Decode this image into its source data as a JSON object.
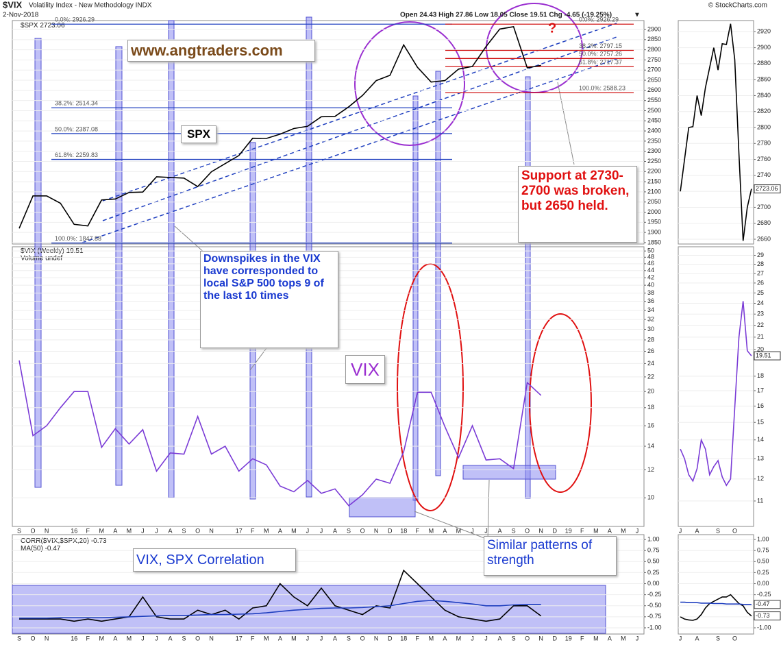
{
  "header": {
    "symbol": "$VIX",
    "title": "Volatility Index - New Methodology INDX",
    "date": "2-Nov-2018",
    "ohlc": "Open 24.43  High 27.86  Low 18.05  Close 19.51  Chg -4.65 (-19.25%)",
    "source": "© StockCharts.com",
    "volume": "Volume undef"
  },
  "annotations": {
    "site": "www.angtraders.com",
    "spx": "SPX",
    "downspikes": "Downspikes in the VIX have corresponded to local S&P 500 tops 9 of the last 10 times",
    "support": "Support at 2730-2700 was broken, but 2650 held.",
    "vix": "VIX",
    "corr": "VIX, SPX Correlation",
    "patterns": "Similar patterns of strength",
    "question": "?"
  },
  "chart_data": [
    {
      "type": "line",
      "name": "$SPX",
      "color": "#000000",
      "values": [
        1920,
        2080,
        2080,
        2044,
        1940,
        1932,
        2060,
        2065,
        2097,
        2099,
        2174,
        2171,
        2168,
        2126,
        2199,
        2239,
        2279,
        2364,
        2363,
        2384,
        2412,
        2423,
        2470,
        2472,
        2519,
        2575,
        2648,
        2674,
        2824,
        2714,
        2641,
        2648,
        2705,
        2718,
        2816,
        2902,
        2914,
        2711,
        2723.06,
        null,
        null,
        null,
        null,
        null,
        null,
        null
      ],
      "ylim": [
        1843,
        2944
      ],
      "yticks": [
        1850,
        1900,
        1950,
        2000,
        2050,
        2100,
        2150,
        2200,
        2250,
        2300,
        2350,
        2400,
        2450,
        2500,
        2550,
        2600,
        2650,
        2700,
        2750,
        2800,
        2850,
        2900
      ],
      "levels": [
        {
          "value": 2926.29,
          "label": "0.0%: 2926.29"
        },
        {
          "value": 2514.34,
          "label": "38.2%: 2514.34"
        },
        {
          "value": 2387.08,
          "label": "50.0%: 2387.08"
        },
        {
          "value": 2259.83,
          "label": "61.8%: 2259.83"
        },
        {
          "value": 1847.88,
          "label": "100.0%: 1847.88"
        }
      ],
      "levels2": [
        {
          "value": 2926.29,
          "label": "0.0%: 2926.29"
        },
        {
          "value": 2797.15,
          "label": "38.2%: 2797.15"
        },
        {
          "value": 2757.26,
          "label": "50.0%: 2757.26"
        },
        {
          "value": 2717.37,
          "label": "61.8%: 2717.37"
        },
        {
          "value": 2588.23,
          "label": "100.0%: 2588.23"
        }
      ],
      "levels_color": "#1f3fbf",
      "levels2_color": "#d01010"
    },
    {
      "type": "line",
      "name": "$VIX (Weekly)",
      "color": "#7a3bd6",
      "log_scale": true,
      "categories": [
        "S",
        "O",
        "N",
        null,
        "16",
        "F",
        "M",
        "A",
        "M",
        "J",
        "J",
        "A",
        "S",
        "O",
        "N",
        null,
        "17",
        "F",
        "M",
        "A",
        "M",
        "J",
        "J",
        "A",
        "S",
        "O",
        "N",
        "D",
        "18",
        "F",
        "M",
        "A",
        "M",
        "J",
        "J",
        "A",
        "S",
        "O",
        "N",
        "D",
        "19",
        "F",
        "M",
        "A",
        "M",
        "J"
      ],
      "values": [
        24.5,
        15,
        16,
        18,
        20,
        20,
        13.9,
        15.7,
        14.2,
        15.6,
        11.9,
        13.4,
        13.3,
        17,
        13.3,
        14,
        11.9,
        12.9,
        12.4,
        10.8,
        10.4,
        11.2,
        10.3,
        10.6,
        9.5,
        10.2,
        11.3,
        11,
        13.5,
        19.9,
        19.9,
        15.9,
        13,
        16,
        12.8,
        12.9,
        12.1,
        21.2,
        19.51,
        null,
        null,
        null,
        null,
        null,
        null,
        null
      ],
      "ylim": [
        8.3,
        51.4
      ],
      "yticks": [
        10,
        12,
        14,
        16,
        18,
        20,
        22,
        24,
        26,
        28,
        30,
        32,
        34,
        36,
        38,
        40,
        42,
        44,
        46,
        48,
        50
      ]
    },
    {
      "type": "line",
      "categories": [
        "S",
        "O",
        "N",
        null,
        "16",
        "F",
        "M",
        "A",
        "M",
        "J",
        "J",
        "A",
        "S",
        "O",
        "N",
        null,
        "17",
        "F",
        "M",
        "A",
        "M",
        "J",
        "J",
        "A",
        "S",
        "O",
        "N",
        "D",
        "18",
        "F",
        "M",
        "A",
        "M",
        "J",
        "J",
        "A",
        "S",
        "O",
        "N",
        "D",
        "19",
        "F",
        "M",
        "A",
        "M",
        "J"
      ],
      "series": [
        {
          "name": "CORR($VIX,$SPX,20)",
          "color": "#000000",
          "values": [
            -0.8,
            -0.8,
            -0.8,
            -0.8,
            -0.85,
            -0.8,
            -0.85,
            -0.8,
            -0.75,
            -0.3,
            -0.75,
            -0.8,
            -0.8,
            -0.6,
            -0.7,
            -0.6,
            -0.8,
            -0.55,
            -0.5,
            0,
            -0.3,
            -0.5,
            -0.1,
            -0.5,
            -0.6,
            -0.7,
            -0.5,
            -0.55,
            0.3,
            0,
            -0.3,
            -0.6,
            -0.75,
            -0.8,
            -0.85,
            -0.8,
            -0.5,
            -0.5,
            -0.73,
            null,
            null,
            null,
            null,
            null,
            null,
            null
          ]
        },
        {
          "name": "MA(50)",
          "color": "#1f3fbf",
          "values": [
            -0.78,
            -0.78,
            -0.78,
            -0.77,
            -0.77,
            -0.77,
            -0.77,
            -0.76,
            -0.75,
            -0.74,
            -0.73,
            -0.72,
            -0.72,
            -0.71,
            -0.7,
            -0.7,
            -0.69,
            -0.68,
            -0.66,
            -0.63,
            -0.6,
            -0.58,
            -0.56,
            -0.55,
            -0.55,
            -0.54,
            -0.52,
            -0.5,
            -0.45,
            -0.4,
            -0.38,
            -0.4,
            -0.43,
            -0.46,
            -0.5,
            -0.5,
            -0.48,
            -0.47,
            -0.47,
            null,
            null,
            null,
            null,
            null,
            null,
            null
          ]
        }
      ],
      "ylim": [
        -1.14,
        1.11
      ],
      "yticks": [
        {
          "value": 1,
          "label": "1.00"
        },
        0.75,
        {
          "value": 0.5,
          "label": "0.50"
        },
        0.25,
        {
          "value": 0,
          "label": "0.00"
        },
        -0.25,
        {
          "value": -0.5,
          "label": "-0.50"
        },
        -0.75,
        {
          "value": -1,
          "label": "-1.00"
        }
      ]
    },
    {
      "type": "line",
      "color": "#000000",
      "values": [
        2720,
        2760,
        2800,
        2801,
        2840,
        2815,
        2850,
        2875,
        2900,
        2872,
        2905,
        2904,
        2930,
        2885,
        2767,
        2658,
        2700,
        2723.06
      ],
      "ylim": [
        2654,
        2934
      ],
      "yticks": [
        2660,
        2680,
        2700,
        2720,
        2740,
        2760,
        2780,
        2800,
        2820,
        2840,
        2860,
        2880,
        2900,
        2920
      ]
    },
    {
      "type": "line",
      "color": "#7a3bd6",
      "log_scale": true,
      "categories": [
        "J",
        null,
        null,
        null,
        "A",
        null,
        null,
        null,
        null,
        "S",
        null,
        null,
        null,
        "O",
        null,
        null,
        null,
        null
      ],
      "values": [
        13.5,
        13,
        12.2,
        11.9,
        12.5,
        14,
        13.5,
        12.2,
        12.6,
        12.9,
        12.1,
        11.7,
        12,
        15.9,
        21,
        24.2,
        19.9,
        19.51
      ],
      "ylim": [
        9.95,
        30
      ],
      "yticks": [
        11,
        12,
        13,
        14,
        15,
        16,
        17,
        18,
        20,
        21,
        22,
        23,
        24,
        25,
        26,
        27,
        28,
        29
      ]
    },
    {
      "type": "line",
      "categories": [
        "J",
        null,
        null,
        null,
        "A",
        null,
        null,
        null,
        null,
        "S",
        null,
        null,
        null,
        "O",
        null,
        null,
        null,
        null
      ],
      "series": [
        {
          "color": "#000000",
          "values": [
            -0.75,
            -0.8,
            -0.82,
            -0.83,
            -0.8,
            -0.7,
            -0.55,
            -0.45,
            -0.4,
            -0.35,
            -0.3,
            -0.3,
            -0.25,
            -0.35,
            -0.45,
            -0.5,
            -0.65,
            -0.73
          ]
        },
        {
          "color": "#1f3fbf",
          "values": [
            -0.42,
            -0.42,
            -0.43,
            -0.43,
            -0.43,
            -0.44,
            -0.44,
            -0.44,
            -0.45,
            -0.45,
            -0.45,
            -0.46,
            -0.46,
            -0.46,
            -0.46,
            -0.47,
            -0.47,
            -0.47
          ]
        }
      ],
      "ylim": [
        -1.14,
        1.11
      ],
      "yticks": [
        {
          "value": 1,
          "label": "1.00"
        },
        0.75,
        {
          "value": 0.5,
          "label": "0.50"
        },
        0.25,
        {
          "value": 0,
          "label": "0.00"
        },
        -0.25,
        {
          "value": -0.5,
          "label": "-0.50"
        },
        -0.75,
        {
          "value": -1,
          "label": "-1.00"
        }
      ]
    }
  ]
}
